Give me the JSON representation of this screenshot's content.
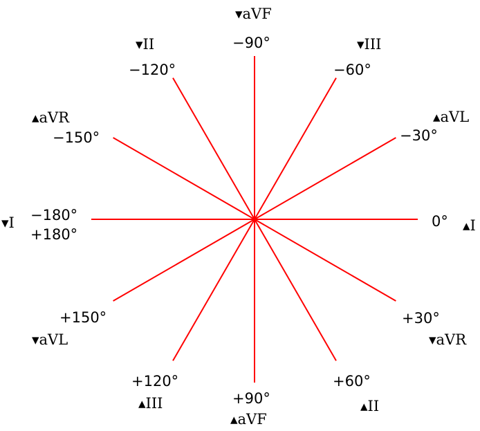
{
  "colors": {
    "axis": "#ff0000",
    "text": "#000000",
    "background": "#ffffff"
  },
  "axes": [
    {
      "angle": -180,
      "degree_label": "−180°",
      "degree_label_2": "+180°",
      "lead_label": "▾I"
    },
    {
      "angle": -150,
      "degree_label": "−150°",
      "lead_label": "▴aVR"
    },
    {
      "angle": -120,
      "degree_label": "−120°",
      "lead_label": "▾II"
    },
    {
      "angle": -90,
      "degree_label": "−90°",
      "lead_label": "▾aVF"
    },
    {
      "angle": -60,
      "degree_label": "−60°",
      "lead_label": "▾III"
    },
    {
      "angle": -30,
      "degree_label": "−30°",
      "lead_label": "▴aVL"
    },
    {
      "angle": 0,
      "degree_label": "0°",
      "lead_label": "▴I"
    },
    {
      "angle": 30,
      "degree_label": "+30°",
      "lead_label": "▾aVR"
    },
    {
      "angle": 60,
      "degree_label": "+60°",
      "lead_label": "▴II"
    },
    {
      "angle": 90,
      "degree_label": "+90°",
      "lead_label": "▴aVF"
    },
    {
      "angle": 120,
      "degree_label": "+120°",
      "lead_label": "▴III"
    },
    {
      "angle": 150,
      "degree_label": "+150°",
      "lead_label": "▾aVL"
    }
  ]
}
